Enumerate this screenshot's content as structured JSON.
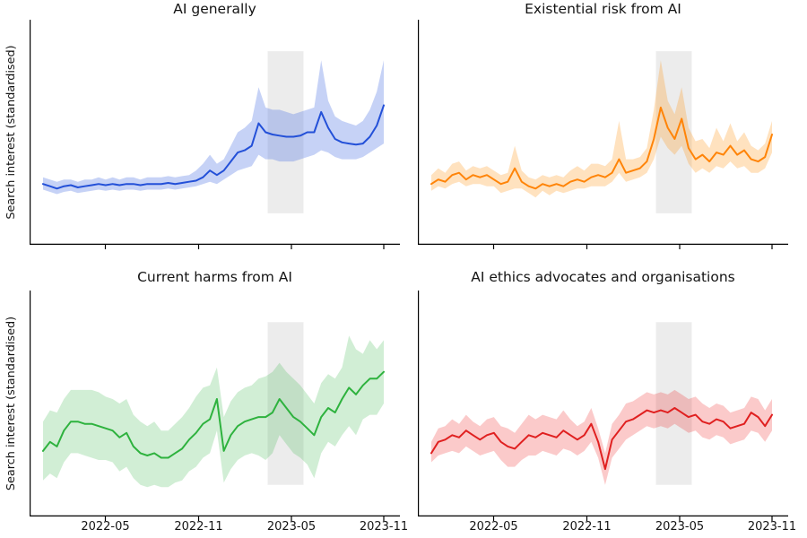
{
  "chart_data": {
    "type": "line",
    "layout": "2x2 grid of subplots, shared style; only left and bottom spines; no gridlines; no legend; no y tick labels",
    "ylabel": "Search interest (standardised)",
    "xticks": [
      "2022-05",
      "2022-11",
      "2023-05",
      "2023-11"
    ],
    "x_range": [
      "2022-01",
      "2023-11"
    ],
    "y_units": "standardised search interest (unitless); series values below are fractions of plot height, 0 = bottom axis, 1 = top of plot",
    "grid": false,
    "legend": "none",
    "highlight_span": {
      "start": "2023-03-17",
      "end": "2023-05-26",
      "color": "#dcdcdc",
      "opacity": 0.55
    },
    "x": [
      "2022-01-02",
      "2022-01-16",
      "2022-01-30",
      "2022-02-13",
      "2022-02-27",
      "2022-03-13",
      "2022-03-27",
      "2022-04-10",
      "2022-04-24",
      "2022-05-08",
      "2022-05-22",
      "2022-06-05",
      "2022-06-19",
      "2022-07-03",
      "2022-07-17",
      "2022-07-31",
      "2022-08-14",
      "2022-08-28",
      "2022-09-11",
      "2022-09-25",
      "2022-10-09",
      "2022-10-23",
      "2022-11-06",
      "2022-11-20",
      "2022-12-04",
      "2022-12-18",
      "2023-01-01",
      "2023-01-15",
      "2023-01-29",
      "2023-02-12",
      "2023-02-26",
      "2023-03-12",
      "2023-03-26",
      "2023-04-09",
      "2023-04-23",
      "2023-05-07",
      "2023-05-21",
      "2023-06-04",
      "2023-06-18",
      "2023-07-02",
      "2023-07-16",
      "2023-07-30",
      "2023-08-13",
      "2023-08-27",
      "2023-09-10",
      "2023-09-24",
      "2023-10-08",
      "2023-10-22",
      "2023-11-05",
      "2023-11-19"
    ],
    "charts": [
      {
        "title": "AI generally",
        "color": "#2350d8",
        "band_color": "#4169e1",
        "band_opacity": 0.3,
        "line": [
          0.27,
          0.26,
          0.25,
          0.26,
          0.265,
          0.255,
          0.26,
          0.265,
          0.27,
          0.265,
          0.27,
          0.265,
          0.27,
          0.27,
          0.265,
          0.27,
          0.27,
          0.27,
          0.275,
          0.27,
          0.275,
          0.28,
          0.285,
          0.3,
          0.33,
          0.31,
          0.33,
          0.37,
          0.41,
          0.42,
          0.44,
          0.54,
          0.5,
          0.49,
          0.485,
          0.48,
          0.48,
          0.485,
          0.5,
          0.5,
          0.59,
          0.52,
          0.47,
          0.455,
          0.45,
          0.445,
          0.45,
          0.48,
          0.53,
          0.62
        ],
        "upper": [
          0.3,
          0.29,
          0.28,
          0.29,
          0.29,
          0.28,
          0.29,
          0.29,
          0.3,
          0.29,
          0.3,
          0.29,
          0.3,
          0.3,
          0.29,
          0.3,
          0.3,
          0.3,
          0.305,
          0.3,
          0.305,
          0.31,
          0.33,
          0.36,
          0.4,
          0.36,
          0.38,
          0.44,
          0.5,
          0.52,
          0.55,
          0.7,
          0.61,
          0.6,
          0.6,
          0.59,
          0.58,
          0.59,
          0.6,
          0.61,
          0.82,
          0.64,
          0.57,
          0.55,
          0.54,
          0.53,
          0.55,
          0.6,
          0.68,
          0.82
        ],
        "lower": [
          0.245,
          0.235,
          0.225,
          0.235,
          0.24,
          0.23,
          0.235,
          0.24,
          0.245,
          0.24,
          0.245,
          0.24,
          0.245,
          0.245,
          0.24,
          0.245,
          0.245,
          0.245,
          0.25,
          0.245,
          0.25,
          0.255,
          0.26,
          0.27,
          0.28,
          0.27,
          0.29,
          0.31,
          0.33,
          0.34,
          0.35,
          0.4,
          0.38,
          0.38,
          0.37,
          0.37,
          0.37,
          0.38,
          0.39,
          0.4,
          0.42,
          0.41,
          0.39,
          0.38,
          0.38,
          0.38,
          0.39,
          0.41,
          0.43,
          0.45
        ]
      },
      {
        "title": "Existential risk from AI",
        "color": "#ff8408",
        "band_color": "#ff8c00",
        "band_opacity": 0.25,
        "line": [
          0.27,
          0.29,
          0.28,
          0.31,
          0.32,
          0.29,
          0.31,
          0.3,
          0.31,
          0.29,
          0.27,
          0.28,
          0.34,
          0.28,
          0.26,
          0.25,
          0.27,
          0.26,
          0.27,
          0.26,
          0.28,
          0.29,
          0.28,
          0.3,
          0.31,
          0.3,
          0.32,
          0.38,
          0.32,
          0.33,
          0.34,
          0.37,
          0.47,
          0.61,
          0.52,
          0.47,
          0.56,
          0.43,
          0.38,
          0.4,
          0.37,
          0.41,
          0.4,
          0.44,
          0.4,
          0.42,
          0.38,
          0.37,
          0.39,
          0.49
        ],
        "upper": [
          0.31,
          0.34,
          0.32,
          0.36,
          0.37,
          0.33,
          0.35,
          0.34,
          0.35,
          0.33,
          0.31,
          0.32,
          0.44,
          0.33,
          0.3,
          0.29,
          0.31,
          0.3,
          0.31,
          0.3,
          0.33,
          0.35,
          0.33,
          0.36,
          0.36,
          0.35,
          0.38,
          0.55,
          0.38,
          0.38,
          0.39,
          0.43,
          0.6,
          0.82,
          0.64,
          0.58,
          0.7,
          0.52,
          0.46,
          0.47,
          0.43,
          0.52,
          0.46,
          0.54,
          0.46,
          0.5,
          0.44,
          0.42,
          0.45,
          0.55
        ],
        "lower": [
          0.24,
          0.26,
          0.25,
          0.27,
          0.28,
          0.26,
          0.27,
          0.27,
          0.26,
          0.26,
          0.23,
          0.24,
          0.25,
          0.25,
          0.23,
          0.21,
          0.24,
          0.22,
          0.24,
          0.23,
          0.24,
          0.25,
          0.25,
          0.26,
          0.26,
          0.26,
          0.28,
          0.32,
          0.28,
          0.29,
          0.3,
          0.32,
          0.38,
          0.48,
          0.43,
          0.4,
          0.44,
          0.36,
          0.32,
          0.34,
          0.32,
          0.35,
          0.34,
          0.37,
          0.34,
          0.35,
          0.32,
          0.32,
          0.34,
          0.41
        ]
      },
      {
        "title": "Current harms from AI",
        "color": "#2eb23e",
        "band_color": "#2eb23e",
        "band_opacity": 0.22,
        "line": [
          0.29,
          0.33,
          0.31,
          0.38,
          0.42,
          0.42,
          0.41,
          0.41,
          0.4,
          0.39,
          0.38,
          0.35,
          0.37,
          0.31,
          0.28,
          0.27,
          0.28,
          0.26,
          0.26,
          0.28,
          0.3,
          0.34,
          0.37,
          0.41,
          0.43,
          0.52,
          0.29,
          0.36,
          0.4,
          0.42,
          0.43,
          0.44,
          0.44,
          0.46,
          0.52,
          0.48,
          0.44,
          0.42,
          0.39,
          0.36,
          0.44,
          0.48,
          0.46,
          0.52,
          0.57,
          0.54,
          0.58,
          0.61,
          0.61,
          0.64
        ],
        "upper": [
          0.42,
          0.47,
          0.46,
          0.52,
          0.56,
          0.56,
          0.56,
          0.56,
          0.55,
          0.53,
          0.52,
          0.5,
          0.52,
          0.45,
          0.42,
          0.4,
          0.42,
          0.38,
          0.38,
          0.41,
          0.44,
          0.48,
          0.53,
          0.57,
          0.58,
          0.66,
          0.44,
          0.51,
          0.55,
          0.57,
          0.58,
          0.61,
          0.62,
          0.64,
          0.68,
          0.64,
          0.61,
          0.58,
          0.54,
          0.5,
          0.59,
          0.63,
          0.61,
          0.66,
          0.8,
          0.74,
          0.72,
          0.78,
          0.74,
          0.78
        ],
        "lower": [
          0.16,
          0.19,
          0.17,
          0.24,
          0.28,
          0.28,
          0.27,
          0.26,
          0.25,
          0.25,
          0.24,
          0.2,
          0.22,
          0.17,
          0.14,
          0.13,
          0.14,
          0.13,
          0.13,
          0.15,
          0.16,
          0.2,
          0.22,
          0.26,
          0.28,
          0.38,
          0.15,
          0.21,
          0.25,
          0.27,
          0.28,
          0.27,
          0.25,
          0.28,
          0.36,
          0.32,
          0.28,
          0.26,
          0.23,
          0.17,
          0.28,
          0.33,
          0.31,
          0.36,
          0.4,
          0.36,
          0.43,
          0.45,
          0.45,
          0.5
        ]
      },
      {
        "title": "AI ethics advocates and organisations",
        "color": "#e02020",
        "band_color": "#ee2222",
        "band_opacity": 0.24,
        "line": [
          0.28,
          0.33,
          0.34,
          0.36,
          0.35,
          0.38,
          0.36,
          0.34,
          0.36,
          0.37,
          0.33,
          0.31,
          0.3,
          0.33,
          0.36,
          0.35,
          0.37,
          0.36,
          0.35,
          0.38,
          0.36,
          0.34,
          0.36,
          0.41,
          0.33,
          0.21,
          0.34,
          0.38,
          0.42,
          0.43,
          0.45,
          0.47,
          0.46,
          0.47,
          0.46,
          0.48,
          0.46,
          0.44,
          0.45,
          0.42,
          0.41,
          0.43,
          0.42,
          0.39,
          0.4,
          0.41,
          0.46,
          0.44,
          0.4,
          0.45
        ],
        "upper": [
          0.33,
          0.39,
          0.4,
          0.43,
          0.41,
          0.45,
          0.42,
          0.4,
          0.43,
          0.44,
          0.4,
          0.39,
          0.37,
          0.41,
          0.45,
          0.43,
          0.45,
          0.44,
          0.43,
          0.47,
          0.43,
          0.4,
          0.42,
          0.48,
          0.39,
          0.28,
          0.41,
          0.45,
          0.5,
          0.51,
          0.53,
          0.55,
          0.54,
          0.55,
          0.54,
          0.56,
          0.54,
          0.52,
          0.53,
          0.5,
          0.48,
          0.5,
          0.49,
          0.46,
          0.47,
          0.48,
          0.53,
          0.52,
          0.47,
          0.52
        ],
        "lower": [
          0.24,
          0.27,
          0.28,
          0.29,
          0.28,
          0.31,
          0.29,
          0.27,
          0.28,
          0.29,
          0.25,
          0.22,
          0.22,
          0.25,
          0.27,
          0.27,
          0.29,
          0.28,
          0.27,
          0.3,
          0.29,
          0.27,
          0.29,
          0.33,
          0.26,
          0.14,
          0.26,
          0.3,
          0.34,
          0.36,
          0.38,
          0.4,
          0.39,
          0.4,
          0.39,
          0.41,
          0.39,
          0.37,
          0.38,
          0.35,
          0.34,
          0.36,
          0.35,
          0.32,
          0.33,
          0.34,
          0.38,
          0.37,
          0.33,
          0.38
        ]
      }
    ]
  }
}
